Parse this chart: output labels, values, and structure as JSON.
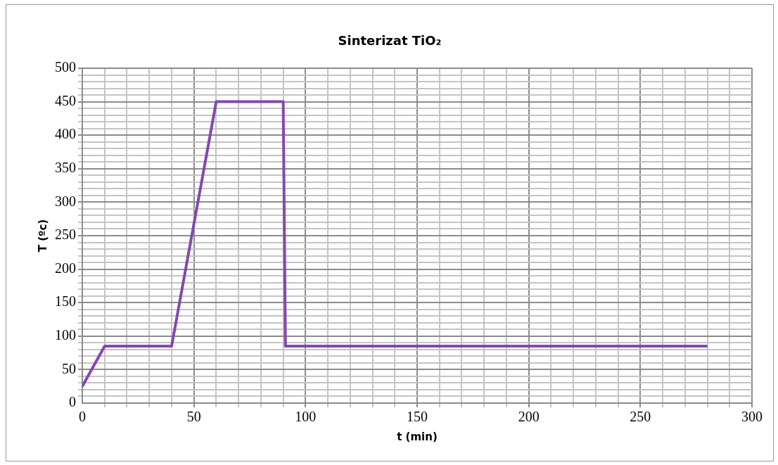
{
  "chart_data": {
    "type": "line",
    "title": "Sinterizat TiO₂",
    "xlabel": "t (min)",
    "ylabel": "T (ºc)",
    "x": [
      0,
      10,
      40,
      60,
      90,
      91,
      280
    ],
    "series": [
      {
        "color": "#8548ae",
        "values": [
          25,
          85,
          85,
          450,
          450,
          85,
          85
        ]
      }
    ],
    "xlim": [
      0,
      300
    ],
    "ylim": [
      0,
      500
    ],
    "xticks": [
      0,
      {
        "value": 10,
        "label": null
      },
      {
        "value": 20,
        "label": null
      },
      {
        "value": 30,
        "label": null
      },
      {
        "value": 40,
        "label": null
      },
      50,
      {
        "value": 60,
        "label": null
      },
      {
        "value": 70,
        "label": null
      },
      {
        "value": 80,
        "label": null
      },
      {
        "value": 90,
        "label": null
      },
      100,
      {
        "value": 110,
        "label": null
      },
      {
        "value": 120,
        "label": null
      },
      {
        "value": 130,
        "label": null
      },
      {
        "value": 140,
        "label": null
      },
      150,
      {
        "value": 160,
        "label": null
      },
      {
        "value": 170,
        "label": null
      },
      {
        "value": 180,
        "label": null
      },
      {
        "value": 190,
        "label": null
      },
      200,
      {
        "value": 210,
        "label": null
      },
      {
        "value": 220,
        "label": null
      },
      {
        "value": 230,
        "label": null
      },
      {
        "value": 240,
        "label": null
      },
      250,
      {
        "value": 260,
        "label": null
      },
      {
        "value": 270,
        "label": null
      },
      {
        "value": 280,
        "label": null
      },
      {
        "value": 290,
        "label": null
      },
      300
    ],
    "yticks": [
      0,
      {
        "value": 10,
        "label": null
      },
      {
        "value": 20,
        "label": null
      },
      {
        "value": 30,
        "label": null
      },
      {
        "value": 40,
        "label": null
      },
      50,
      {
        "value": 60,
        "label": null
      },
      {
        "value": 70,
        "label": null
      },
      {
        "value": 80,
        "label": null
      },
      {
        "value": 90,
        "label": null
      },
      100,
      {
        "value": 110,
        "label": null
      },
      {
        "value": 120,
        "label": null
      },
      {
        "value": 130,
        "label": null
      },
      {
        "value": 140,
        "label": null
      },
      150,
      {
        "value": 160,
        "label": null
      },
      {
        "value": 170,
        "label": null
      },
      {
        "value": 180,
        "label": null
      },
      {
        "value": 190,
        "label": null
      },
      200,
      {
        "value": 210,
        "label": null
      },
      {
        "value": 220,
        "label": null
      },
      {
        "value": 230,
        "label": null
      },
      {
        "value": 240,
        "label": null
      },
      250,
      {
        "value": 260,
        "label": null
      },
      {
        "value": 270,
        "label": null
      },
      {
        "value": 280,
        "label": null
      },
      {
        "value": 290,
        "label": null
      },
      300,
      {
        "value": 310,
        "label": null
      },
      {
        "value": 320,
        "label": null
      },
      {
        "value": 330,
        "label": null
      },
      {
        "value": 340,
        "label": null
      },
      350,
      {
        "value": 360,
        "label": null
      },
      {
        "value": 370,
        "label": null
      },
      {
        "value": 380,
        "label": null
      },
      {
        "value": 390,
        "label": null
      },
      400,
      {
        "value": 410,
        "label": null
      },
      {
        "value": 420,
        "label": null
      },
      {
        "value": 430,
        "label": null
      },
      {
        "value": 440,
        "label": null
      },
      450,
      {
        "value": 460,
        "label": null
      },
      {
        "value": 470,
        "label": null
      },
      {
        "value": 480,
        "label": null
      },
      {
        "value": 490,
        "label": null
      },
      500
    ],
    "grid": true,
    "marker": "none",
    "line_style": "solid",
    "legend": false
  }
}
